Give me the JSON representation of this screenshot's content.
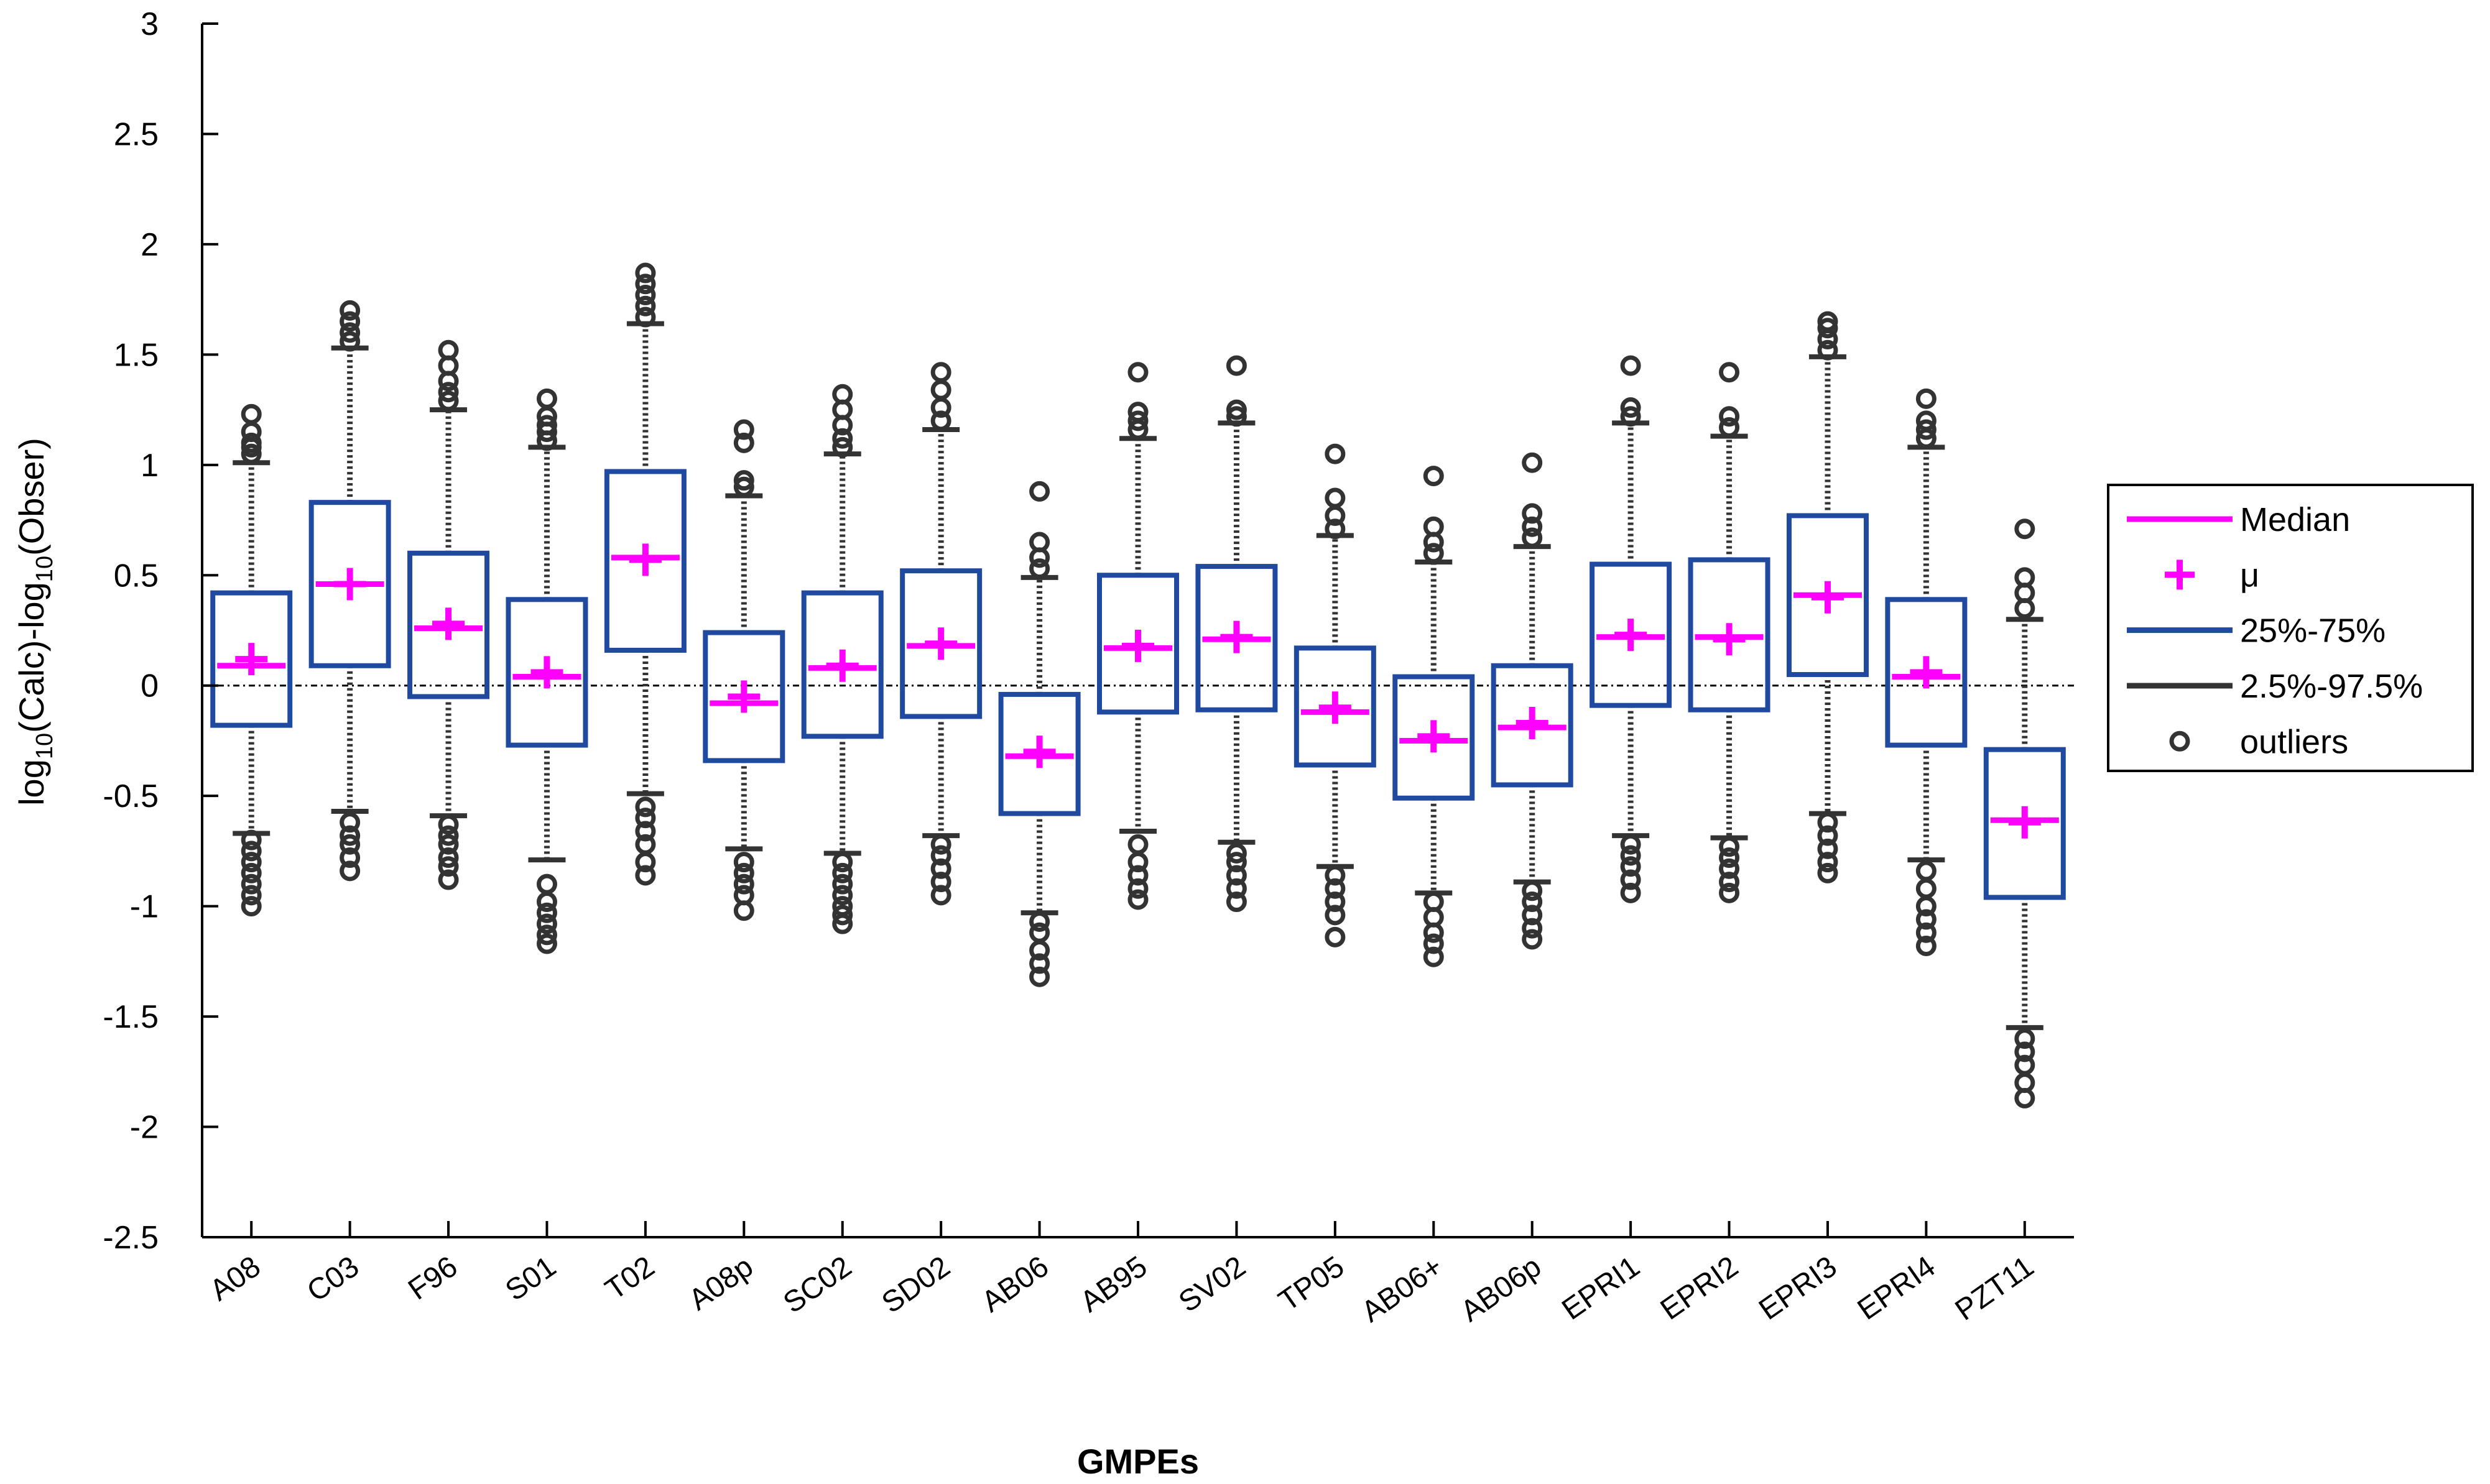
{
  "chart_data": {
    "type": "boxplot",
    "xlabel": "GMPEs",
    "ylabel": "log10(Calc)-log10(Obser)",
    "ylim": [
      -2.5,
      3
    ],
    "yticks": [
      -2.5,
      -2,
      -1.5,
      -1,
      -0.5,
      0,
      0.5,
      1,
      1.5,
      2,
      2.5,
      3
    ],
    "ytick_labels": [
      "-2.5",
      "-2",
      "-1.5",
      "-1",
      "-0.5",
      "0",
      "0.5",
      "1",
      "1.5",
      "2",
      "2.5",
      "3"
    ],
    "reference_line": 0,
    "legend": {
      "position": "right",
      "entries": [
        "Median",
        "μ",
        "25%-75%",
        "2.5%-97.5%",
        "outliers"
      ]
    },
    "colors": {
      "median": "#ff00ff",
      "mean": "#ff00ff",
      "box": "#1f4aa0",
      "whisker": "#333333",
      "outlier": "#333333",
      "reference_line": "#000000"
    },
    "categories": [
      "A08",
      "C03",
      "F96",
      "S01",
      "T02",
      "A08p",
      "SC02",
      "SD02",
      "AB06",
      "AB95",
      "SV02",
      "TP05",
      "AB06+",
      "AB06p",
      "EPRI1",
      "EPRI2",
      "EPRI3",
      "EPRI4",
      "PZT11"
    ],
    "boxes": [
      {
        "q1": -0.18,
        "q3": 0.42,
        "median": 0.09,
        "mean": 0.12,
        "whisker_low": -0.67,
        "whisker_high": 1.01,
        "outliers_low": [
          -0.7,
          -0.75,
          -0.8,
          -0.85,
          -0.9,
          -0.95,
          -1.0
        ],
        "outliers_high": [
          1.05,
          1.08,
          1.1,
          1.15,
          1.23
        ]
      },
      {
        "q1": 0.09,
        "q3": 0.83,
        "median": 0.46,
        "mean": 0.46,
        "whisker_low": -0.57,
        "whisker_high": 1.53,
        "outliers_low": [
          -0.62,
          -0.68,
          -0.72,
          -0.78,
          -0.84
        ],
        "outliers_high": [
          1.56,
          1.6,
          1.65,
          1.7
        ]
      },
      {
        "q1": -0.05,
        "q3": 0.6,
        "median": 0.26,
        "mean": 0.28,
        "whisker_low": -0.59,
        "whisker_high": 1.25,
        "outliers_low": [
          -0.63,
          -0.68,
          -0.72,
          -0.78,
          -0.82,
          -0.88
        ],
        "outliers_high": [
          1.29,
          1.33,
          1.38,
          1.45,
          1.52
        ]
      },
      {
        "q1": -0.27,
        "q3": 0.39,
        "median": 0.04,
        "mean": 0.06,
        "whisker_low": -0.79,
        "whisker_high": 1.08,
        "outliers_low": [
          -0.9,
          -0.98,
          -1.03,
          -1.08,
          -1.13,
          -1.17
        ],
        "outliers_high": [
          1.11,
          1.15,
          1.18,
          1.22,
          1.3
        ]
      },
      {
        "q1": 0.16,
        "q3": 0.97,
        "median": 0.58,
        "mean": 0.57,
        "whisker_low": -0.49,
        "whisker_high": 1.64,
        "outliers_low": [
          -0.55,
          -0.6,
          -0.66,
          -0.72,
          -0.8,
          -0.86
        ],
        "outliers_high": [
          1.67,
          1.72,
          1.77,
          1.82,
          1.87
        ]
      },
      {
        "q1": -0.34,
        "q3": 0.24,
        "median": -0.08,
        "mean": -0.05,
        "whisker_low": -0.74,
        "whisker_high": 0.86,
        "outliers_low": [
          -0.8,
          -0.85,
          -0.9,
          -0.95,
          -1.02
        ],
        "outliers_high": [
          0.9,
          0.93,
          1.1,
          1.16
        ]
      },
      {
        "q1": -0.23,
        "q3": 0.42,
        "median": 0.08,
        "mean": 0.09,
        "whisker_low": -0.76,
        "whisker_high": 1.05,
        "outliers_low": [
          -0.8,
          -0.85,
          -0.9,
          -0.95,
          -1.0,
          -1.04,
          -1.08
        ],
        "outliers_high": [
          1.08,
          1.12,
          1.18,
          1.25,
          1.32
        ]
      },
      {
        "q1": -0.14,
        "q3": 0.52,
        "median": 0.18,
        "mean": 0.19,
        "whisker_low": -0.68,
        "whisker_high": 1.16,
        "outliers_low": [
          -0.72,
          -0.77,
          -0.83,
          -0.89,
          -0.95
        ],
        "outliers_high": [
          1.2,
          1.26,
          1.34,
          1.42
        ]
      },
      {
        "q1": -0.58,
        "q3": -0.04,
        "median": -0.32,
        "mean": -0.3,
        "whisker_low": -1.03,
        "whisker_high": 0.49,
        "outliers_low": [
          -1.07,
          -1.12,
          -1.2,
          -1.26,
          -1.32
        ],
        "outliers_high": [
          0.53,
          0.58,
          0.65,
          0.88
        ]
      },
      {
        "q1": -0.12,
        "q3": 0.5,
        "median": 0.17,
        "mean": 0.18,
        "whisker_low": -0.66,
        "whisker_high": 1.12,
        "outliers_low": [
          -0.72,
          -0.8,
          -0.86,
          -0.92,
          -0.97
        ],
        "outliers_high": [
          1.16,
          1.2,
          1.24,
          1.42
        ]
      },
      {
        "q1": -0.11,
        "q3": 0.54,
        "median": 0.21,
        "mean": 0.22,
        "whisker_low": -0.71,
        "whisker_high": 1.19,
        "outliers_low": [
          -0.76,
          -0.8,
          -0.86,
          -0.92,
          -0.98
        ],
        "outliers_high": [
          1.22,
          1.25,
          1.45
        ]
      },
      {
        "q1": -0.36,
        "q3": 0.17,
        "median": -0.12,
        "mean": -0.1,
        "whisker_low": -0.82,
        "whisker_high": 0.68,
        "outliers_low": [
          -0.86,
          -0.92,
          -0.98,
          -1.04,
          -1.14
        ],
        "outliers_high": [
          0.71,
          0.77,
          0.85,
          1.05
        ]
      },
      {
        "q1": -0.51,
        "q3": 0.04,
        "median": -0.25,
        "mean": -0.23,
        "whisker_low": -0.94,
        "whisker_high": 0.56,
        "outliers_low": [
          -0.98,
          -1.05,
          -1.12,
          -1.17,
          -1.23
        ],
        "outliers_high": [
          0.6,
          0.65,
          0.72,
          0.95
        ]
      },
      {
        "q1": -0.45,
        "q3": 0.09,
        "median": -0.19,
        "mean": -0.17,
        "whisker_low": -0.89,
        "whisker_high": 0.63,
        "outliers_low": [
          -0.93,
          -0.98,
          -1.04,
          -1.1,
          -1.15
        ],
        "outliers_high": [
          0.67,
          0.72,
          0.78,
          1.01
        ]
      },
      {
        "q1": -0.09,
        "q3": 0.55,
        "median": 0.22,
        "mean": 0.23,
        "whisker_low": -0.68,
        "whisker_high": 1.19,
        "outliers_low": [
          -0.72,
          -0.77,
          -0.82,
          -0.88,
          -0.94
        ],
        "outliers_high": [
          1.22,
          1.26,
          1.45
        ]
      },
      {
        "q1": -0.11,
        "q3": 0.57,
        "median": 0.22,
        "mean": 0.21,
        "whisker_low": -0.69,
        "whisker_high": 1.13,
        "outliers_low": [
          -0.73,
          -0.78,
          -0.83,
          -0.89,
          -0.94
        ],
        "outliers_high": [
          1.17,
          1.22,
          1.42
        ]
      },
      {
        "q1": 0.05,
        "q3": 0.77,
        "median": 0.41,
        "mean": 0.4,
        "whisker_low": -0.58,
        "whisker_high": 1.49,
        "outliers_low": [
          -0.62,
          -0.68,
          -0.74,
          -0.8,
          -0.85
        ],
        "outliers_high": [
          1.52,
          1.57,
          1.62,
          1.65
        ]
      },
      {
        "q1": -0.27,
        "q3": 0.39,
        "median": 0.04,
        "mean": 0.06,
        "whisker_low": -0.79,
        "whisker_high": 1.08,
        "outliers_low": [
          -0.84,
          -0.92,
          -1.0,
          -1.06,
          -1.12,
          -1.18
        ],
        "outliers_high": [
          1.12,
          1.16,
          1.2,
          1.3
        ]
      },
      {
        "q1": -0.96,
        "q3": -0.29,
        "median": -0.61,
        "mean": -0.62,
        "whisker_low": -1.55,
        "whisker_high": 0.3,
        "outliers_low": [
          -1.6,
          -1.66,
          -1.72,
          -1.8,
          -1.87
        ],
        "outliers_high": [
          0.35,
          0.42,
          0.49,
          0.71
        ]
      }
    ]
  }
}
